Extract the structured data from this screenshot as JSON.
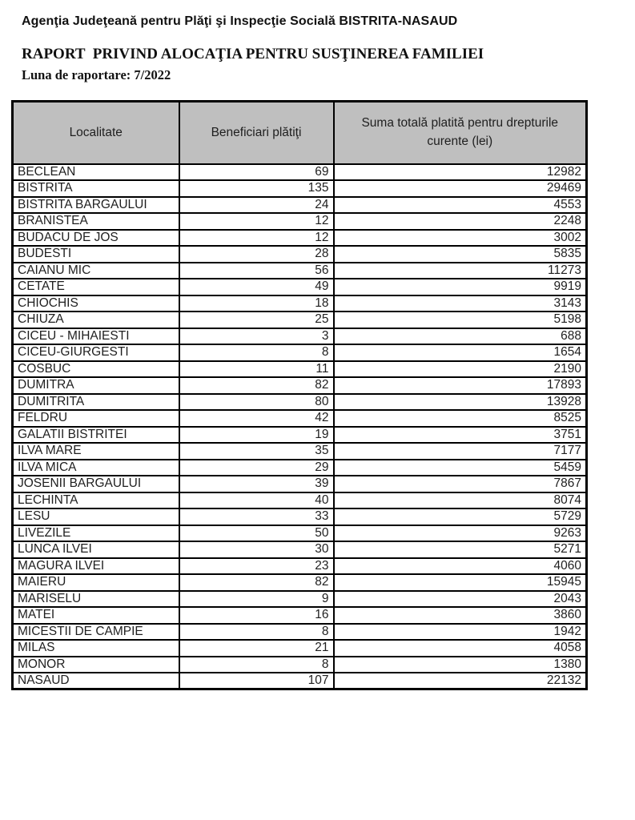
{
  "header": {
    "agency": "Agenţia Judeţeană pentru Plăţi şi Inspecţie Socială BISTRITA-NASAUD",
    "title": "RAPORT  PRIVIND ALOCAŢIA PENTRU SUSŢINEREA FAMILIEI",
    "period": "Luna de raportare: 7/2022"
  },
  "table": {
    "columns": {
      "locality": "Localitate",
      "beneficiaries": "Beneficiari plătiţi",
      "amount": "Suma totală platită pentru drepturile curente (lei)"
    },
    "rows": [
      {
        "locality": "BECLEAN",
        "beneficiaries": "69",
        "amount": "12982"
      },
      {
        "locality": "BISTRITA",
        "beneficiaries": "135",
        "amount": "29469"
      },
      {
        "locality": "BISTRITA BARGAULUI",
        "beneficiaries": "24",
        "amount": "4553"
      },
      {
        "locality": "BRANISTEA",
        "beneficiaries": "12",
        "amount": "2248"
      },
      {
        "locality": "BUDACU DE JOS",
        "beneficiaries": "12",
        "amount": "3002"
      },
      {
        "locality": "BUDESTI",
        "beneficiaries": "28",
        "amount": "5835"
      },
      {
        "locality": "CAIANU MIC",
        "beneficiaries": "56",
        "amount": "11273"
      },
      {
        "locality": "CETATE",
        "beneficiaries": "49",
        "amount": "9919"
      },
      {
        "locality": "CHIOCHIS",
        "beneficiaries": "18",
        "amount": "3143"
      },
      {
        "locality": "CHIUZA",
        "beneficiaries": "25",
        "amount": "5198"
      },
      {
        "locality": "CICEU - MIHAIESTI",
        "beneficiaries": "3",
        "amount": "688"
      },
      {
        "locality": "CICEU-GIURGESTI",
        "beneficiaries": "8",
        "amount": "1654"
      },
      {
        "locality": "COSBUC",
        "beneficiaries": "11",
        "amount": "2190"
      },
      {
        "locality": "DUMITRA",
        "beneficiaries": "82",
        "amount": "17893"
      },
      {
        "locality": "DUMITRITA",
        "beneficiaries": "80",
        "amount": "13928"
      },
      {
        "locality": "FELDRU",
        "beneficiaries": "42",
        "amount": "8525"
      },
      {
        "locality": "GALATII BISTRITEI",
        "beneficiaries": "19",
        "amount": "3751"
      },
      {
        "locality": "ILVA MARE",
        "beneficiaries": "35",
        "amount": "7177"
      },
      {
        "locality": "ILVA MICA",
        "beneficiaries": "29",
        "amount": "5459"
      },
      {
        "locality": "JOSENII BARGAULUI",
        "beneficiaries": "39",
        "amount": "7867"
      },
      {
        "locality": "LECHINTA",
        "beneficiaries": "40",
        "amount": "8074"
      },
      {
        "locality": "LESU",
        "beneficiaries": "33",
        "amount": "5729"
      },
      {
        "locality": "LIVEZILE",
        "beneficiaries": "50",
        "amount": "9263"
      },
      {
        "locality": "LUNCA ILVEI",
        "beneficiaries": "30",
        "amount": "5271"
      },
      {
        "locality": "MAGURA ILVEI",
        "beneficiaries": "23",
        "amount": "4060"
      },
      {
        "locality": "MAIERU",
        "beneficiaries": "82",
        "amount": "15945"
      },
      {
        "locality": "MARISELU",
        "beneficiaries": "9",
        "amount": "2043"
      },
      {
        "locality": "MATEI",
        "beneficiaries": "16",
        "amount": "3860"
      },
      {
        "locality": "MICESTII DE CAMPIE",
        "beneficiaries": "8",
        "amount": "1942"
      },
      {
        "locality": "MILAS",
        "beneficiaries": "21",
        "amount": "4058"
      },
      {
        "locality": "MONOR",
        "beneficiaries": "8",
        "amount": "1380"
      },
      {
        "locality": "NASAUD",
        "beneficiaries": "107",
        "amount": "22132"
      }
    ]
  },
  "colors": {
    "header_bg": "#bfbfbf",
    "border": "#000000",
    "text": "#1f1f1f",
    "page_bg": "#ffffff"
  }
}
